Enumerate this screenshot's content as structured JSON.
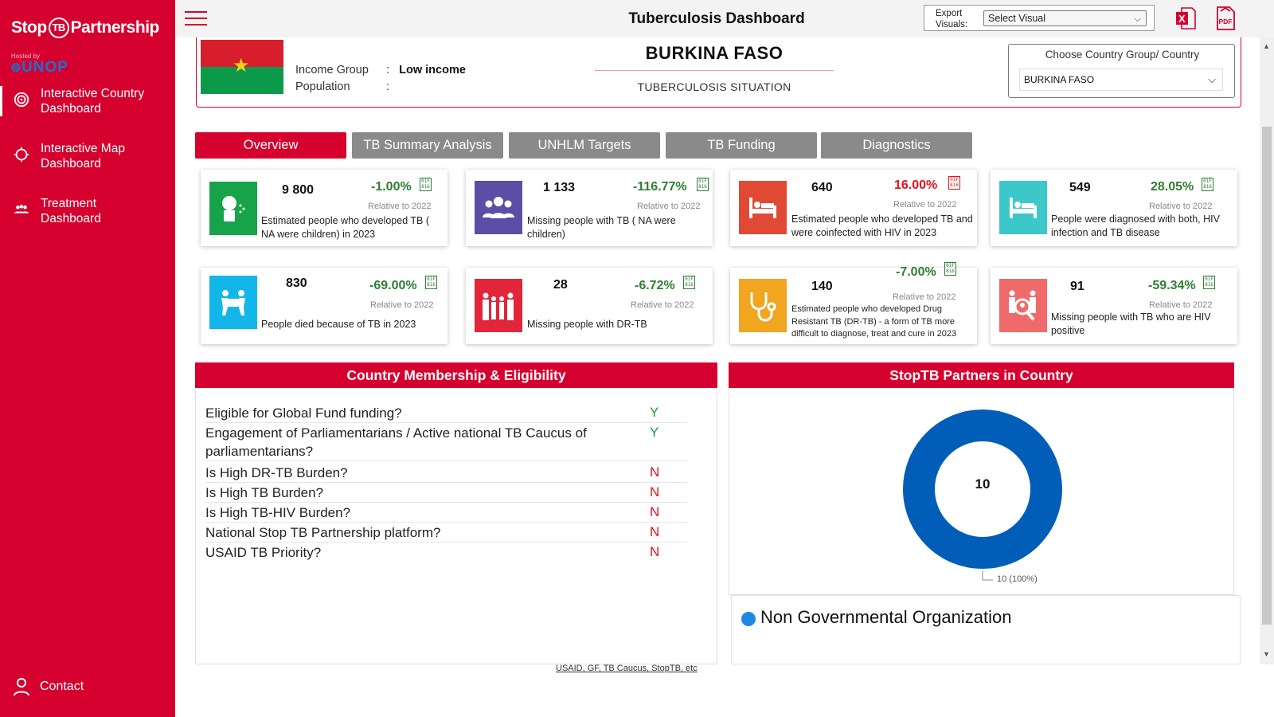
{
  "sidebar": {
    "logo_text_left": "Stop",
    "logo_text_tb": "TB",
    "logo_text_right": "Partnership",
    "hosted_by": "Hosted by",
    "host_org": "UNOP",
    "nav": [
      {
        "label_line1": "Interactive Country",
        "label_line2": "Dashboard",
        "icon": "target-icon"
      },
      {
        "label_line1": "Interactive Map",
        "label_line2": "Dashboard",
        "icon": "map-pin-icon"
      },
      {
        "label_line1": "Treatment",
        "label_line2": "Dashboard",
        "icon": "people-icon"
      }
    ],
    "contact_label": "Contact"
  },
  "header": {
    "title": "Tuberculosis Dashboard",
    "export_label_1": "Export",
    "export_label_2": "Visuals:",
    "export_select": "Select Visual"
  },
  "country": {
    "name": "BURKINA FASO",
    "subtitle": "TUBERCULOSIS SITUATION",
    "income_group_label": "Income Group",
    "income_group_sep": ":",
    "income_group_value": "Low income",
    "population_label": "Population",
    "population_sep": ":",
    "population_value": "",
    "choose_label": "Choose Country Group/ Country",
    "choose_value": "BURKINA FASO"
  },
  "tabs": [
    "Overview",
    "TB Summary Analysis",
    "UNHLM Targets",
    "TB Funding",
    "Diagnostics"
  ],
  "cards": [
    {
      "value": "9 800",
      "change": "-1.00%",
      "relative": "Relative to 2022",
      "desc": "Estimated people who developed TB ( NA were children) in 2023",
      "color": "#16a34a",
      "icon": "cough-person-icon"
    },
    {
      "value": "1 133",
      "change": "-116.77%",
      "relative": "Relative to 2022",
      "desc": "Missing people with TB ( NA were children)",
      "color": "#5b4ea6",
      "icon": "group-icon"
    },
    {
      "value": "640",
      "change": "16.00%",
      "relative": "Relative to 2022",
      "desc": "Estimated people who developed TB and were coinfected with HIV in 2023",
      "color": "#e04a35",
      "icon": "bed-icon"
    },
    {
      "value": "549",
      "change": "28.05%",
      "relative": "Relative to 2022",
      "desc": "People were diagnosed with both, HIV infection and TB disease",
      "color": "#3cc8c8",
      "icon": "bed-icon"
    },
    {
      "value": "830",
      "change": "-69.00%",
      "relative": "Relative to 2022",
      "desc": "People died because of TB in 2023",
      "color": "#13b6e8",
      "icon": "pallbearers-icon"
    },
    {
      "value": "28",
      "change": "-6.72%",
      "relative": "Relative to 2022",
      "desc": "Missing people with DR-TB",
      "color": "#e3253a",
      "icon": "family-icon"
    },
    {
      "value": "140",
      "change": "-7.00%",
      "relative": "Relative to 2022",
      "desc": "Estimated people who developed Drug Resistant TB (DR-TB) - a form of TB more difficult to diagnose, treat and cure in 2023",
      "color": "#f2a51f",
      "icon": "stethoscope-icon"
    },
    {
      "value": "91",
      "change": "-59.34%",
      "relative": "Relative to 2022",
      "desc": "Missing people with TB who are HIV positive",
      "color": "#f06a6a",
      "icon": "search-people-icon"
    }
  ],
  "membership": {
    "title": "Country Membership & Eligibility",
    "rows": [
      {
        "q": "Eligible for Global Fund funding?",
        "a": "Y"
      },
      {
        "q": "Engagement of Parliamentarians / Active national TB Caucus of parliamentarians?",
        "a": "Y"
      },
      {
        "q": "Is High DR-TB Burden?",
        "a": "N"
      },
      {
        "q": "Is High TB Burden?",
        "a": "N"
      },
      {
        "q": "Is High TB-HIV Burden?",
        "a": "N"
      },
      {
        "q": "National Stop TB Partnership platform?",
        "a": "N"
      },
      {
        "q": "USAID TB Priority?",
        "a": "N"
      }
    ],
    "sources": "USAID, GF, TB Caucus, StopTB, etc"
  },
  "partners": {
    "title": "StopTB Partners in Country",
    "center_label": "10",
    "slice_label": "10 (100%)",
    "legend": "Non Governmental Organization"
  },
  "chart_data": {
    "type": "pie",
    "title": "StopTB Partners in Country",
    "categories": [
      "Non Governmental Organization"
    ],
    "values": [
      10
    ],
    "colors": [
      "#005eb8"
    ],
    "legend": "bottom"
  }
}
